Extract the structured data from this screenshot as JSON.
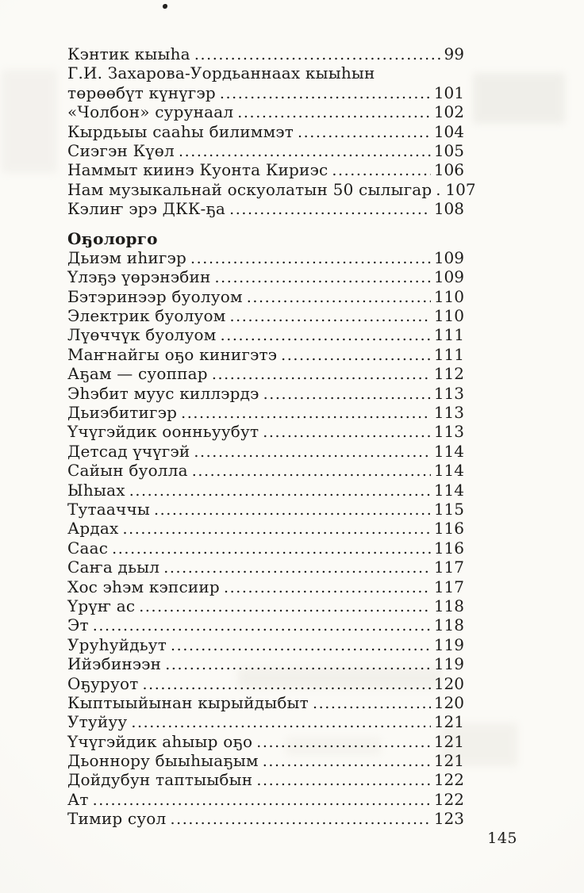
{
  "colors": {
    "paper": "#f9f8f4",
    "ink": "#1c1b19"
  },
  "folio": "145",
  "toc": {
    "sections": [
      {
        "header": null,
        "entries": [
          {
            "title": "Кэнтик кыыһа",
            "page": "99"
          },
          {
            "title": "Г.И. Захарова-Уордьаннаах кыыһын",
            "page": null
          },
          {
            "title": "төрөөбүт күнүгэр",
            "page": "101"
          },
          {
            "title": "«Чолбон» сурунаал",
            "page": "102"
          },
          {
            "title": "Кырдьыы сааһы билиммэт",
            "page": "104"
          },
          {
            "title": "Сиэгэн Күөл",
            "page": "105"
          },
          {
            "title": "Наммыт киинэ Куонта Кириэс",
            "page": "106"
          },
          {
            "title": "Нам музыкальнай оскуолатын 50 сылыгар",
            "page": "107"
          },
          {
            "title": "Кэлиҥ эрэ ДКК-ҕа",
            "page": "108"
          }
        ]
      },
      {
        "header": "Оҕолорго",
        "entries": [
          {
            "title": "Дьиэм иһигэр",
            "page": "109"
          },
          {
            "title": "Үлэҕэ үөрэнэбин",
            "page": "109"
          },
          {
            "title": "Бэтэринээр буолуом",
            "page": "110"
          },
          {
            "title": "Электрик буолуом",
            "page": "110"
          },
          {
            "title": "Лүөччүк буолуом",
            "page": "111"
          },
          {
            "title": "Маҥнайгы оҕо кинигэтэ",
            "page": "111"
          },
          {
            "title": "Аҕам — суоппар",
            "page": "112"
          },
          {
            "title": "Эһэбит муус киллэрдэ",
            "page": "113"
          },
          {
            "title": "Дьиэбитигэр",
            "page": "113"
          },
          {
            "title": "Үчүгэйдик оонньуубут",
            "page": "113"
          },
          {
            "title": "Детсад үчүгэй",
            "page": "114"
          },
          {
            "title": "Сайын буолла",
            "page": "114"
          },
          {
            "title": "Ыһыах",
            "page": "114"
          },
          {
            "title": "Тутааччы",
            "page": "115"
          },
          {
            "title": "Ардах",
            "page": "116"
          },
          {
            "title": "Саас",
            "page": "116"
          },
          {
            "title": "Саҥа дьыл",
            "page": "117"
          },
          {
            "title": "Хос эһэм кэпсиир",
            "page": "117"
          },
          {
            "title": "Үрүҥ ас",
            "page": "118"
          },
          {
            "title": "Эт",
            "page": "118"
          },
          {
            "title": "Уруһуйдьут",
            "page": "119"
          },
          {
            "title": "Ийэбинээн",
            "page": "119"
          },
          {
            "title": "Оҕуруот",
            "page": "120"
          },
          {
            "title": "Кыптыыйынан кырыйдыбыт",
            "page": "120"
          },
          {
            "title": "Утуйуу",
            "page": "121"
          },
          {
            "title": "Үчүгэйдик аһыыр оҕо",
            "page": "121"
          },
          {
            "title": "Дьоннору быыһыаҕым",
            "page": "121"
          },
          {
            "title": "Дойдубун таптыыбын",
            "page": "122"
          },
          {
            "title": "Ат",
            "page": "122"
          },
          {
            "title": "Тимир суол",
            "page": "123"
          }
        ]
      }
    ]
  }
}
